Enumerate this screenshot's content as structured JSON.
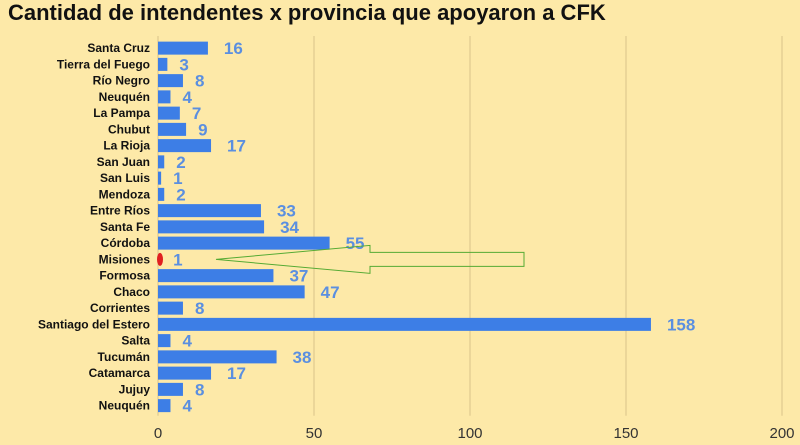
{
  "chart_data": {
    "type": "bar",
    "orientation": "horizontal",
    "title": "Cantidad de intendentes x provincia que apoyaron a CFK",
    "xlabel": "",
    "ylabel": "",
    "xlim": [
      0,
      200
    ],
    "x_ticks": [
      0,
      50,
      100,
      150,
      200
    ],
    "grid": true,
    "categories": [
      "Santa Cruz",
      "Tierra del Fuego",
      "Río Negro",
      "Neuquén",
      "La Pampa",
      "Chubut",
      "La Rioja",
      "San Juan",
      "San Luis",
      "Mendoza",
      "Entre Ríos",
      "Santa Fe",
      "Córdoba",
      "Misiones",
      "Formosa",
      "Chaco",
      "Corrientes",
      "Santiago del Estero",
      "Salta",
      "Tucumán",
      "Catamarca",
      "Jujuy",
      "Neuquén"
    ],
    "values": [
      16,
      3,
      8,
      4,
      7,
      9,
      17,
      2,
      1,
      2,
      33,
      34,
      55,
      1,
      37,
      47,
      8,
      158,
      4,
      38,
      17,
      8,
      4
    ],
    "highlight": {
      "category": "Misiones",
      "color": "#e02020"
    },
    "annotation": {
      "type": "arrow",
      "points_to": "Misiones"
    }
  },
  "colors": {
    "background": "#fde9a8",
    "bar": "#3d7ee6",
    "bar_highlight": "#e02020",
    "value_label": "#5b8fe0",
    "gridline": "#d9c48a",
    "arrow": "#55aa33"
  }
}
